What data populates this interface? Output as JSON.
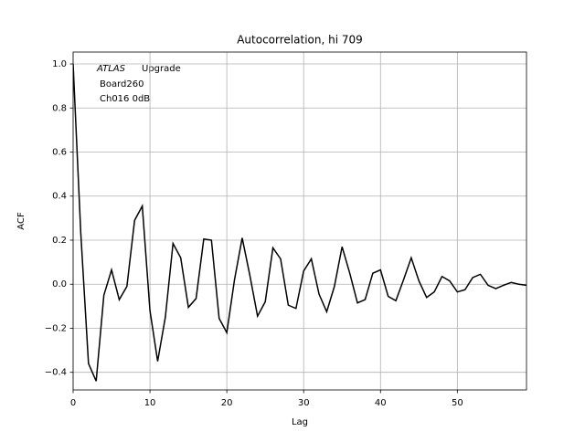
{
  "chart_data": {
    "type": "line",
    "title": "Autocorrelation, hi 709",
    "xlabel": "Lag",
    "ylabel": "ACF",
    "annotation": {
      "emphasis": "ATLAS",
      "lines": [
        "Upgrade",
        "Board260",
        "Ch016 0dB"
      ]
    },
    "x": [
      0,
      1,
      2,
      3,
      4,
      5,
      6,
      7,
      8,
      9,
      10,
      11,
      12,
      13,
      14,
      15,
      16,
      17,
      18,
      19,
      20,
      21,
      22,
      23,
      24,
      25,
      26,
      27,
      28,
      29,
      30,
      31,
      32,
      33,
      34,
      35,
      36,
      37,
      38,
      39,
      40,
      41,
      42,
      43,
      44,
      45,
      46,
      47,
      48,
      49,
      50,
      51,
      52,
      53,
      54,
      55,
      56,
      57,
      58,
      59
    ],
    "series": [
      {
        "color": "#000000",
        "values": [
          1.0,
          0.23,
          -0.36,
          -0.44,
          -0.05,
          0.065,
          -0.07,
          -0.01,
          0.29,
          0.355,
          -0.12,
          -0.35,
          -0.15,
          0.185,
          0.12,
          -0.105,
          -0.065,
          0.205,
          0.2,
          -0.155,
          -0.22,
          0.02,
          0.21,
          0.04,
          -0.145,
          -0.08,
          0.165,
          0.115,
          -0.095,
          -0.11,
          0.06,
          0.115,
          -0.045,
          -0.125,
          -0.01,
          0.17,
          0.05,
          -0.085,
          -0.07,
          0.05,
          0.065,
          -0.055,
          -0.075,
          0.02,
          0.12,
          0.015,
          -0.06,
          -0.035,
          0.035,
          0.015,
          -0.035,
          -0.025,
          0.03,
          0.045,
          -0.005,
          -0.02,
          -0.005,
          0.008,
          0.0,
          -0.005
        ]
      }
    ],
    "xlim": [
      0,
      59
    ],
    "xticks": [
      0,
      10,
      20,
      30,
      40,
      50
    ],
    "ylim": [
      -0.48,
      1.054
    ],
    "yticks": [
      {
        "value": -0.4,
        "label": "−0.4"
      },
      {
        "value": -0.2,
        "label": "−0.2"
      },
      {
        "value": 0,
        "label": "0.0"
      },
      0.2,
      0.4,
      0.6,
      0.8,
      {
        "value": 1,
        "label": "1.0"
      }
    ],
    "grid": true
  }
}
